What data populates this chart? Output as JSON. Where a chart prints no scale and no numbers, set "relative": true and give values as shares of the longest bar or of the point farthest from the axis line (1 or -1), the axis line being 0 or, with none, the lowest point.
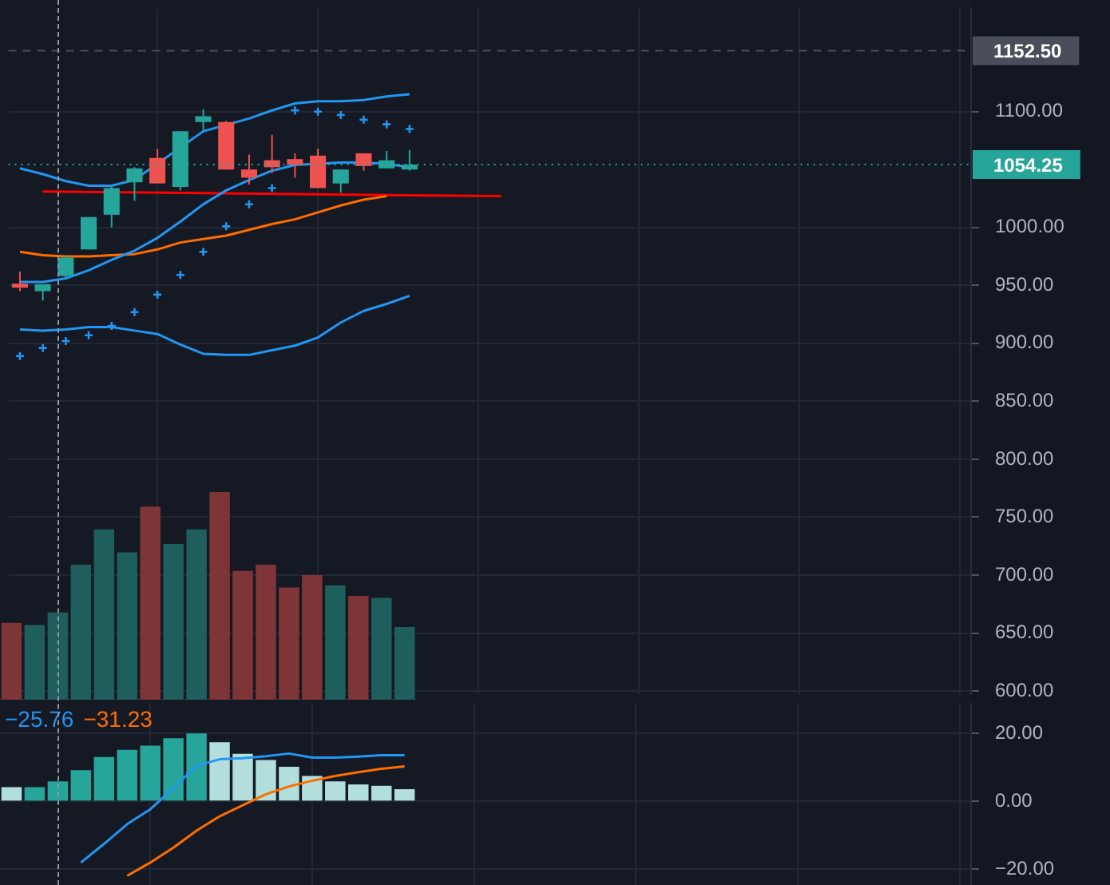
{
  "chart_data": [
    {
      "type": "candlestick",
      "categories": [
        null,
        null,
        null,
        null,
        null,
        null,
        null,
        null,
        null,
        null,
        null,
        null,
        null,
        null,
        null,
        null,
        null,
        null,
        null,
        null,
        null,
        null,
        null,
        null,
        null,
        null,
        null,
        null,
        null,
        null,
        null,
        null,
        null,
        null,
        null,
        null,
        null,
        null,
        null,
        null,
        null,
        null
      ],
      "ohlc": [
        [
          951.5,
          962,
          945,
          948
        ],
        [
          945,
          951,
          937,
          951
        ],
        [
          958,
          976,
          956,
          974
        ],
        [
          981,
          1009,
          981,
          1009
        ],
        [
          1011,
          1036,
          1000,
          1034
        ],
        [
          1039,
          1052,
          1023,
          1051
        ],
        [
          1060,
          1068,
          1038,
          1038
        ],
        [
          1035,
          1083,
          1032,
          1083
        ],
        [
          1091,
          1102,
          1084,
          1096
        ],
        [
          1091,
          1092,
          1050,
          1050
        ],
        [
          1050,
          1063,
          1037,
          1043
        ],
        [
          1058,
          1080,
          1047,
          1052
        ],
        [
          1059,
          1064,
          1043,
          1054
        ],
        [
          1062,
          1068,
          1034,
          1034
        ],
        [
          1038,
          1050,
          1030,
          1050
        ],
        [
          1064,
          1064,
          1049,
          1053
        ],
        [
          1051,
          1066,
          1051,
          1058
        ],
        [
          1050,
          1067,
          1049,
          1054.25
        ],
        null,
        null,
        null,
        null,
        null,
        null,
        null,
        null,
        null,
        null,
        null,
        null,
        null,
        null,
        null,
        null,
        null,
        null,
        null,
        null,
        null,
        null,
        null,
        null
      ],
      "colors": [
        "#ef5350",
        "#26a69a",
        "#26a69a",
        "#26a69a",
        "#26a69a",
        "#26a69a",
        "#ef5350",
        "#26a69a",
        "#26a69a",
        "#ef5350",
        "#ef5350",
        "#ef5350",
        "#ef5350",
        "#ef5350",
        "#26a69a",
        "#ef5350",
        "#26a69a",
        "#26a69a",
        null,
        null,
        null,
        null,
        null,
        null,
        null,
        null,
        null,
        null,
        null,
        null,
        null,
        null,
        null,
        null,
        null,
        null,
        null,
        null,
        null,
        null,
        null,
        null
      ],
      "series": [
        {
          "type": "line",
          "color": "#2196f3",
          "values": [
            1051,
            1046,
            1040,
            1036,
            1036,
            1041,
            null,
            null,
            1083,
            null,
            1094,
            1101,
            1107,
            1109,
            1109,
            1110,
            1113,
            1115,
            null,
            null,
            null,
            null,
            null,
            null,
            null,
            null,
            null,
            null,
            null,
            null,
            null,
            null,
            null,
            null,
            null,
            null,
            null,
            null,
            null,
            null,
            null,
            null
          ]
        },
        {
          "type": "line",
          "color": "#2196f3",
          "values": [
            953,
            953,
            956,
            963,
            972,
            980,
            991,
            1005,
            1020,
            1032,
            1041,
            1049,
            1054,
            null,
            1056,
            1056,
            1055,
            1052,
            null,
            null,
            null,
            null,
            null,
            null,
            null,
            null,
            null,
            null,
            null,
            null,
            null,
            null,
            null,
            null,
            null,
            null,
            null,
            null,
            null,
            null,
            null,
            null
          ]
        },
        {
          "type": "line",
          "color": "#ff6d00",
          "values": [
            979,
            976,
            975,
            975,
            976,
            977,
            981,
            987,
            990,
            993,
            998,
            1003,
            1007,
            1013,
            1019,
            1024,
            1027,
            null,
            null,
            null,
            null,
            null,
            null,
            null,
            null,
            null,
            null,
            null,
            null,
            null,
            null,
            null,
            null,
            null,
            null,
            null,
            null,
            null,
            null,
            null,
            null,
            null
          ]
        },
        {
          "type": "line",
          "color": "#2196f3",
          "values": [
            912,
            911,
            912,
            914,
            914,
            911,
            908,
            899,
            891,
            890,
            890,
            894,
            898,
            905,
            918,
            928,
            934,
            941,
            null,
            null,
            null,
            null,
            null,
            null,
            null,
            null,
            null,
            null,
            null,
            null,
            null,
            null,
            null,
            null,
            null,
            null,
            null,
            null,
            null,
            null,
            null,
            null
          ]
        },
        {
          "type": "scatter",
          "marker": "cross",
          "color": "#2196f3",
          "values": [
            889,
            896,
            902,
            907,
            915,
            927,
            942,
            959,
            979,
            1001,
            1020,
            1034,
            1101,
            1100,
            1097,
            1093,
            1089,
            1085,
            null,
            null,
            null,
            null,
            null,
            null,
            null,
            null,
            null,
            null,
            null,
            null,
            null,
            null,
            null,
            null,
            null,
            null,
            null,
            null,
            null,
            null,
            null,
            null
          ]
        },
        {
          "type": "line",
          "color": "#ff0000",
          "values": [
            null,
            1031,
            null,
            null,
            null,
            null,
            null,
            null,
            null,
            null,
            null,
            null,
            null,
            null,
            null,
            null,
            null,
            null,
            null,
            null,
            null,
            1027,
            null,
            null,
            null,
            null,
            null,
            null,
            null,
            null,
            null,
            null,
            null,
            null,
            null,
            null,
            null,
            null,
            null,
            null,
            null,
            null
          ]
        }
      ],
      "ylim": [
        597,
        1189
      ],
      "yticks": [
        {
          "value": 600,
          "label": "600.00"
        },
        {
          "value": 650,
          "label": "650.00"
        },
        {
          "value": 700,
          "label": "700.00"
        },
        {
          "value": 750,
          "label": "750.00"
        },
        {
          "value": 800,
          "label": "800.00"
        },
        {
          "value": 850,
          "label": "850.00"
        },
        {
          "value": 900,
          "label": "900.00"
        },
        {
          "value": 950,
          "label": "950.00"
        },
        {
          "value": 1000,
          "label": "1000.00"
        },
        {
          "value": 1100,
          "label": "1100.00"
        }
      ],
      "ref_lines": [
        {
          "axis": "y",
          "value": 1152.5,
          "label": "1152.50",
          "color": "#4a4e5a",
          "line_style": "dashed"
        },
        {
          "axis": "y",
          "value": 1054.25,
          "label": "1054.25",
          "color": "#26a69a",
          "line_style": "dotted"
        }
      ],
      "grid": true,
      "marker": "none",
      "tick_labels": "y"
    },
    {
      "type": "bar",
      "relative": true,
      "categories": [
        null,
        null,
        null,
        null,
        null,
        null,
        null,
        null,
        null,
        null,
        null,
        null,
        null,
        null,
        null,
        null,
        null,
        null
      ],
      "values": [
        0.37,
        0.36,
        0.42,
        0.65,
        0.82,
        0.71,
        0.93,
        0.75,
        0.82,
        1,
        0.62,
        0.65,
        0.54,
        0.6,
        0.55,
        0.5,
        0.49,
        0.35
      ],
      "colors": [
        "#7e3538",
        "#1e5e5d",
        "#1e5e5d",
        "#1e5e5d",
        "#1e5e5d",
        "#1e5e5d",
        "#7e3538",
        "#1e5e5d",
        "#1e5e5d",
        "#7e3538",
        "#7e3538",
        "#7e3538",
        "#7e3538",
        "#7e3538",
        "#1e5e5d",
        "#7e3538",
        "#1e5e5d",
        "#1e5e5d"
      ],
      "tick_labels": false
    },
    {
      "type": "bar",
      "categories": [
        null,
        null,
        null,
        null,
        null,
        null,
        null,
        null,
        null,
        null,
        null,
        null,
        null,
        null,
        null,
        null,
        null,
        null,
        null,
        null,
        null,
        null,
        null,
        null,
        null,
        null,
        null,
        null,
        null,
        null,
        null,
        null,
        null,
        null,
        null,
        null,
        null,
        null,
        null,
        null,
        null,
        null
      ],
      "series": [
        {
          "type": "bar",
          "colors": [
            "#b2dfdb",
            "#26a69a",
            "#26a69a",
            "#26a69a",
            "#26a69a",
            "#26a69a",
            "#26a69a",
            "#26a69a",
            "#26a69a",
            "#b2dfdb",
            "#b2dfdb",
            "#b2dfdb",
            "#b2dfdb",
            "#b2dfdb",
            "#b2dfdb",
            "#b2dfdb",
            "#b2dfdb",
            "#b2dfdb",
            null,
            null,
            null,
            null,
            null,
            null,
            null,
            null,
            null,
            null,
            null,
            null,
            null,
            null,
            null,
            null,
            null,
            null,
            null,
            null,
            null,
            null,
            null,
            null
          ],
          "values": [
            4.2,
            4.2,
            5.9,
            9.2,
            13.1,
            15.2,
            16.4,
            18.6,
            20,
            17.4,
            14,
            12.2,
            10.2,
            7.5,
            5.9,
            5,
            4.6,
            3.6,
            null,
            null,
            null,
            null,
            null,
            null,
            null,
            null,
            null,
            null,
            null,
            null,
            null,
            null,
            null,
            null,
            null,
            null,
            null,
            null,
            null,
            null,
            null,
            null
          ]
        },
        {
          "type": "line",
          "color": "#2196f3",
          "values": [
            null,
            null,
            null,
            -18,
            -12.5,
            -6.7,
            -2.3,
            3.9,
            10.5,
            12.4,
            12.7,
            13.3,
            14.1,
            12.9,
            12.9,
            13.2,
            13.6,
            13.6,
            null,
            null,
            null,
            null,
            null,
            null,
            null,
            null,
            null,
            null,
            null,
            null,
            null,
            null,
            null,
            null,
            null,
            null,
            null,
            null,
            null,
            null,
            null,
            null
          ]
        },
        {
          "type": "line",
          "color": "#ff6d00",
          "values": [
            null,
            null,
            null,
            null,
            null,
            -21.9,
            -18,
            -13.6,
            -8.6,
            -4.4,
            -1.1,
            2.1,
            4.4,
            6.1,
            7.5,
            8.6,
            9.6,
            10.3,
            null,
            null,
            null,
            null,
            null,
            null,
            null,
            null,
            null,
            null,
            null,
            null,
            null,
            null,
            null,
            null,
            null,
            null,
            null,
            null,
            null,
            null,
            null,
            null
          ]
        }
      ],
      "ylim": [
        -24.6,
        29
      ],
      "yticks": [
        {
          "value": -20,
          "label": "−20.00"
        },
        {
          "value": 0,
          "label": "0.00"
        },
        {
          "value": 20,
          "label": "20.00"
        }
      ],
      "annotations": [
        "−25.76",
        "−31.23"
      ],
      "grid": true,
      "marker": "none",
      "tick_labels": "y"
    }
  ]
}
